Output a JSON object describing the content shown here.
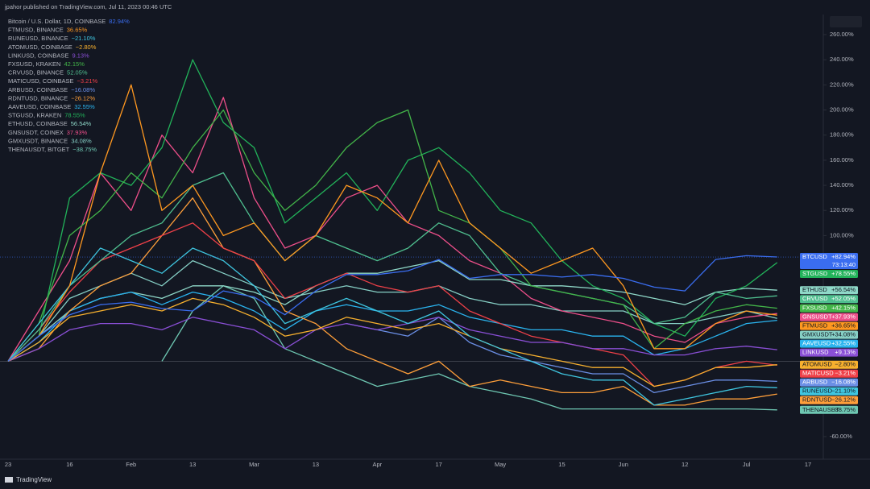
{
  "header": "jpahor published on TradingView.com, Jul 11, 2023 00:46 UTC",
  "footer": "TradingView",
  "chart_data": {
    "type": "line",
    "categories": [
      "23",
      null,
      "16",
      null,
      "Feb",
      null,
      "13",
      null,
      "Mar",
      null,
      "13",
      null,
      "Apr",
      null,
      "17",
      null,
      "May",
      null,
      "15",
      null,
      "Jun",
      null,
      "12",
      null,
      "Jul",
      null,
      "17"
    ],
    "ylim": [
      -78,
      276
    ],
    "yticks": [
      {
        "value": 260,
        "label": "260.00%"
      },
      {
        "value": 240,
        "label": "240.00%"
      },
      {
        "value": 220,
        "label": "220.00%"
      },
      {
        "value": 200,
        "label": "200.00%"
      },
      {
        "value": 180,
        "label": "180.00%"
      },
      {
        "value": 160,
        "label": "160.00%"
      },
      {
        "value": 140,
        "label": "140.00%"
      },
      {
        "value": 120,
        "label": "120.00%"
      },
      {
        "value": 100,
        "label": "100.00%"
      },
      {
        "value": -60,
        "label": "-60.00%"
      }
    ],
    "grid": false,
    "series": [
      {
        "name": "Bitcoin / U.S. Dollar, 1D, COINBASE",
        "symbol": "BTCUSD",
        "color": "#3a6df0",
        "legend_label": "82.94%",
        "tag_label": "+82.94%",
        "countdown": "73:13:40",
        "values": [
          0,
          20,
          37,
          45,
          47,
          42,
          40,
          56,
          51,
          37,
          56,
          69,
          69,
          72,
          81,
          66,
          69,
          69,
          67,
          69,
          66,
          59,
          56,
          81,
          84,
          82.94,
          null
        ]
      },
      {
        "name": "FTMUSD, BINANCE",
        "symbol": "FTMUSD",
        "color": "#ff9820",
        "legend_label": "36.65%",
        "tag_label": "+36.65%",
        "values": [
          0,
          20,
          60,
          150,
          220,
          120,
          140,
          100,
          110,
          80,
          100,
          140,
          130,
          110,
          160,
          110,
          90,
          70,
          80,
          90,
          60,
          10,
          10,
          30,
          40,
          36.65,
          null
        ]
      },
      {
        "name": "RUNEUSD, BINANCE",
        "symbol": "RUNEUSD",
        "color": "#3fc6e0",
        "legend_label": "−21.10%",
        "tag_label": "−21.10%",
        "values": [
          0,
          30,
          60,
          90,
          80,
          70,
          90,
          80,
          60,
          30,
          40,
          50,
          40,
          30,
          40,
          20,
          10,
          0,
          -10,
          -15,
          -15,
          -35,
          -30,
          -25,
          -20,
          -21.1,
          null
        ]
      },
      {
        "name": "ATOMUSD, COINBASE",
        "symbol": "ATOMUSD",
        "color": "#f7b02e",
        "legend_label": "−2.80%",
        "tag_label": "−2.80%",
        "values": [
          0,
          15,
          35,
          40,
          45,
          40,
          50,
          45,
          35,
          20,
          25,
          35,
          30,
          25,
          30,
          20,
          10,
          5,
          0,
          -5,
          -5,
          -20,
          -15,
          -5,
          -5,
          -2.8,
          null
        ]
      },
      {
        "name": "LINKUSD, COINBASE",
        "symbol": "LINKUSD",
        "color": "#8a4fd6",
        "legend_label": "9.13%",
        "tag_label": "+9.13%",
        "values": [
          0,
          10,
          25,
          30,
          30,
          25,
          35,
          30,
          25,
          10,
          25,
          30,
          25,
          30,
          35,
          25,
          20,
          15,
          15,
          10,
          10,
          5,
          5,
          10,
          12,
          9.13,
          null
        ]
      },
      {
        "name": "FXSUSD, KRAKEN",
        "symbol": "FXSUSD",
        "color": "#43b549",
        "legend_label": "42.15%",
        "tag_label": "+42.15%",
        "values": [
          0,
          30,
          100,
          120,
          150,
          130,
          170,
          200,
          150,
          120,
          140,
          170,
          190,
          200,
          120,
          110,
          90,
          60,
          55,
          50,
          45,
          10,
          30,
          40,
          45,
          42.15,
          null
        ]
      },
      {
        "name": "CRVUSD, BINANCE",
        "symbol": "CRVUSD",
        "color": "#4fbf8f",
        "legend_label": "52.05%",
        "tag_label": "+52.05%",
        "values": [
          0,
          25,
          60,
          80,
          100,
          110,
          140,
          150,
          110,
          80,
          100,
          90,
          80,
          90,
          110,
          100,
          70,
          60,
          55,
          50,
          45,
          30,
          35,
          55,
          50,
          52.05,
          null
        ]
      },
      {
        "name": "MATICUSD, COINBASE",
        "symbol": "MATICUSD",
        "color": "#ef4048",
        "legend_label": "−3.21%",
        "tag_label": "−3.21%",
        "values": [
          0,
          25,
          55,
          80,
          90,
          100,
          110,
          90,
          80,
          50,
          60,
          70,
          60,
          55,
          60,
          40,
          30,
          20,
          15,
          10,
          5,
          -20,
          -15,
          -5,
          0,
          -3.21,
          null
        ]
      },
      {
        "name": "ARBUSD, COINBASE",
        "symbol": "ARBUSD",
        "color": "#6b8fe6",
        "legend_label": "−16.08%",
        "tag_label": "−16.08%",
        "values": [
          null,
          null,
          null,
          null,
          null,
          null,
          null,
          null,
          null,
          null,
          null,
          30,
          25,
          20,
          35,
          15,
          5,
          0,
          -5,
          -10,
          -10,
          -25,
          -20,
          -15,
          -15,
          -16.08,
          null
        ]
      },
      {
        "name": "RDNTUSD, BINANCE",
        "symbol": "RDNTUSD",
        "color": "#ff9f3a",
        "legend_label": "−26.12%",
        "tag_label": "−26.12%",
        "values": [
          0,
          10,
          40,
          60,
          70,
          100,
          130,
          90,
          80,
          40,
          30,
          10,
          0,
          -10,
          0,
          -20,
          -15,
          -20,
          -25,
          -25,
          -20,
          -35,
          -35,
          -30,
          -30,
          -26.12,
          null
        ]
      },
      {
        "name": "AAVEUSD, COINBASE",
        "symbol": "AAVEUSD",
        "color": "#2ab4ef",
        "legend_label": "32.55%",
        "tag_label": "+32.55%",
        "values": [
          0,
          15,
          40,
          50,
          55,
          45,
          55,
          50,
          40,
          25,
          40,
          45,
          40,
          40,
          45,
          35,
          30,
          25,
          25,
          20,
          20,
          5,
          10,
          20,
          30,
          32.55,
          null
        ]
      },
      {
        "name": "STGUSD, KRAKEN",
        "symbol": "STGUSD",
        "color": "#22b35a",
        "legend_label": "78.55%",
        "tag_label": "+78.55%",
        "values": [
          0,
          20,
          130,
          150,
          140,
          170,
          240,
          190,
          170,
          110,
          130,
          150,
          120,
          160,
          170,
          150,
          120,
          110,
          80,
          60,
          50,
          30,
          20,
          50,
          60,
          78.55,
          null
        ]
      },
      {
        "name": "ETHUSD, COINBASE",
        "symbol": "ETHUSD",
        "color": "#8fd8c8",
        "legend_label": "56.54%",
        "tag_label": "+56.54%",
        "values": [
          0,
          20,
          40,
          50,
          55,
          50,
          60,
          60,
          55,
          45,
          60,
          70,
          70,
          75,
          80,
          65,
          65,
          60,
          60,
          58,
          55,
          50,
          45,
          55,
          58,
          56.54,
          null
        ]
      },
      {
        "name": "GNSUSDT, COINEX",
        "symbol": "GNSUSDT",
        "color": "#ee4f8a",
        "legend_label": "37.93%",
        "tag_label": "+37.93%",
        "values": [
          0,
          40,
          80,
          150,
          120,
          180,
          150,
          210,
          130,
          90,
          100,
          130,
          140,
          110,
          100,
          80,
          70,
          50,
          40,
          35,
          30,
          20,
          15,
          30,
          35,
          37.93,
          null
        ]
      },
      {
        "name": "GMXUSDT, BINANCE",
        "symbol": "GMXUSDT",
        "color": "#86cfc5",
        "legend_label": "34.08%",
        "tag_label": "+34.08%",
        "values": [
          0,
          20,
          50,
          60,
          70,
          60,
          80,
          70,
          60,
          50,
          55,
          60,
          55,
          55,
          60,
          50,
          45,
          45,
          40,
          40,
          40,
          30,
          30,
          35,
          40,
          34.08,
          null
        ]
      },
      {
        "name": "THENAUSDT, BITGET",
        "symbol": "THENAUSDT",
        "color": "#6ec7b2",
        "legend_label": "−38.75%",
        "tag_label": "−38.75%",
        "values": [
          null,
          null,
          null,
          null,
          null,
          0,
          40,
          60,
          50,
          10,
          0,
          -10,
          -20,
          -15,
          -10,
          -20,
          -25,
          -30,
          -38,
          -38,
          -38,
          -38,
          -38,
          -38,
          -38,
          -38.75,
          null
        ]
      }
    ]
  }
}
